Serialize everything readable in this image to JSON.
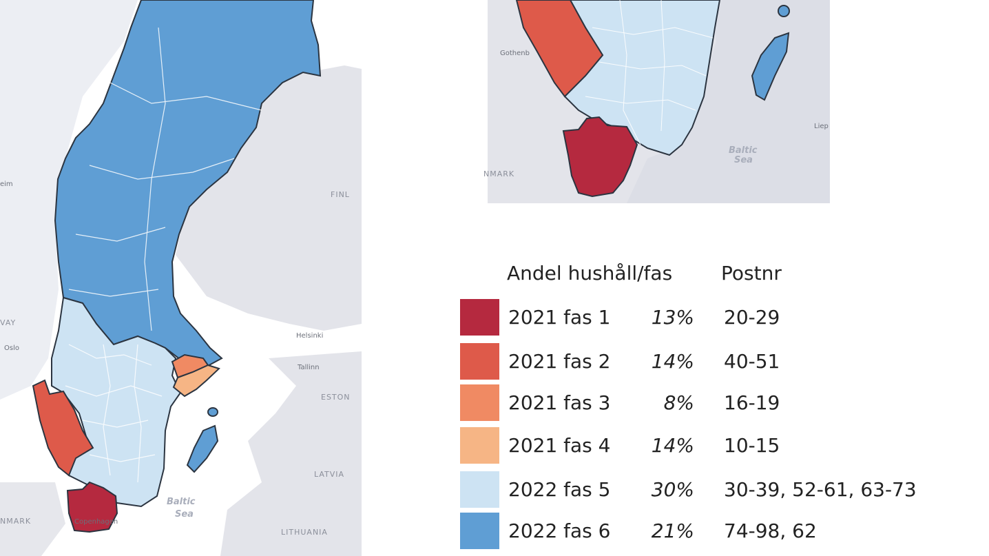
{
  "map_labels": {
    "finland": "FINL",
    "norway": "VAY",
    "oslo": "Oslo",
    "trondheim": "eim",
    "helsinki": "Helsinki",
    "tallinn": "Tallinn",
    "estonia": "ESTON",
    "latvia": "LATVIA",
    "lithuania": "LITHUANIA",
    "denmark": "NMARK",
    "copenhagen": "Copenhagen",
    "baltic_sea_line1": "Baltic",
    "baltic_sea_line2": "Sea",
    "inset_gothenburg": "Gothenb",
    "inset_denmark": "NMARK",
    "inset_baltic_line1": "Baltic",
    "inset_baltic_line2": "Sea",
    "inset_liepaja": "Liep"
  },
  "colors": {
    "fas1": "#b5293f",
    "fas2": "#de5a4a",
    "fas3": "#f08a63",
    "fas4": "#f6b585",
    "fas5": "#cde3f3",
    "fas6": "#5f9ed4",
    "land": "#e3e4ea",
    "water": "#ffffff"
  },
  "legend": {
    "header_share": "Andel hushåll/fas",
    "header_postnr": "Postnr",
    "rows": [
      {
        "label": "2021 fas 1",
        "pct": "13%",
        "postnr": "20-29",
        "color": "#b5293f"
      },
      {
        "label": "2021 fas 2",
        "pct": "14%",
        "postnr": "40-51",
        "color": "#de5a4a"
      },
      {
        "label": "2021 fas 3",
        "pct": "8%",
        "postnr": "16-19",
        "color": "#f08a63"
      },
      {
        "label": "2021 fas 4",
        "pct": "14%",
        "postnr": "10-15",
        "color": "#f6b585"
      },
      {
        "label": "2022 fas 5",
        "pct": "30%",
        "postnr": "30-39, 52-61, 63-73",
        "color": "#cde3f3"
      },
      {
        "label": "2022 fas 6",
        "pct": "21%",
        "postnr": "74-98, 62",
        "color": "#5f9ed4"
      }
    ]
  }
}
